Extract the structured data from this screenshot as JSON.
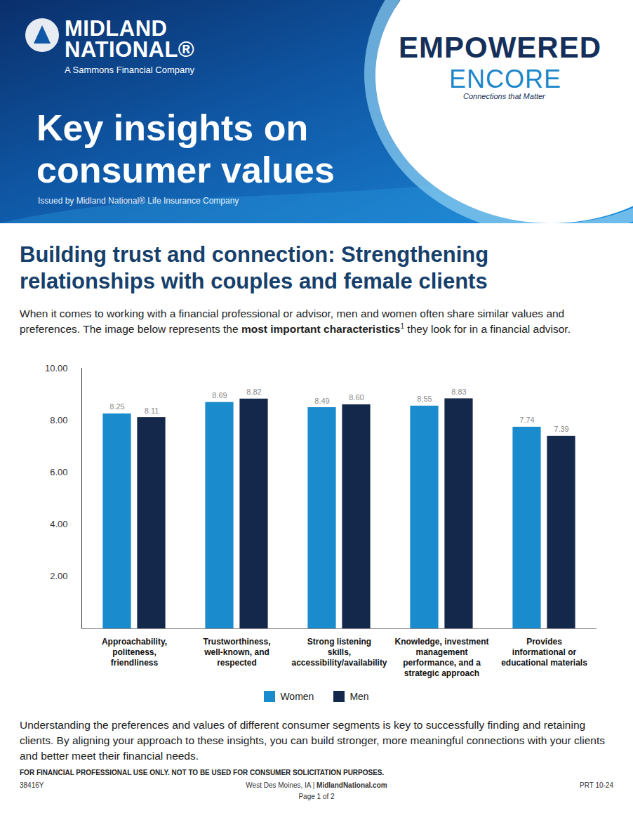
{
  "header": {
    "company": "MIDLAND NATIONAL®",
    "company_tagline": "A Sammons Financial Company",
    "brand_name_1": "EMPOWERED",
    "brand_name_2": "ENCORE",
    "brand_tagline": "Connections that Matter",
    "title": "Key insights on consumer values",
    "issuer": "Issued by Midland National® Life Insurance Company"
  },
  "heading": "Building trust and connection: Strengthening relationships with couples and female clients",
  "intro": {
    "text_before": "When it comes to working with a financial professional or advisor, men and women often share similar values and preferences. The image below represents the ",
    "emphasis": "most important characteristics",
    "footnote": "1",
    "text_after": " they look for in a financial advisor."
  },
  "chart_data": {
    "type": "bar",
    "categories": [
      "Approachability, politeness, friendliness",
      "Trustworthiness, well-known, and respected",
      "Strong listening skills, accessibility/availability",
      "Knowledge, investment management performance, and a strategic approach",
      "Provides informational or educational materials"
    ],
    "series": [
      {
        "name": "Women",
        "color": "#1a8ccd",
        "values": [
          8.25,
          8.69,
          8.49,
          8.55,
          7.74
        ],
        "value_labels": [
          "8.25",
          "8.69",
          "8.49",
          "8.55",
          "7.74"
        ]
      },
      {
        "name": "Men",
        "color": "#14284b",
        "values": [
          8.11,
          8.82,
          8.6,
          8.83,
          7.39
        ],
        "value_labels": [
          "8.11",
          "8.82",
          "8.60",
          "8.83",
          "7.39"
        ]
      }
    ],
    "ylim": [
      0,
      10
    ],
    "yticks": [
      {
        "value": 2,
        "label": "2.00"
      },
      {
        "value": 4,
        "label": "4.00"
      },
      {
        "value": 6,
        "label": "6.00"
      },
      {
        "value": 8,
        "label": "8.00"
      },
      {
        "value": 10,
        "label": "10.00"
      }
    ],
    "grid": false,
    "data_labels": true,
    "legend": "bottom"
  },
  "closing": "Understanding the preferences and values of different consumer segments is key to successfully finding and retaining clients. By aligning your approach to these insights, you can build stronger, more meaningful connections with your clients and better meet their financial needs.",
  "footer": {
    "disclaimer": "FOR FINANCIAL PROFESSIONAL USE ONLY. NOT TO BE USED FOR CONSUMER SOLICITATION PURPOSES.",
    "code": "38416Y",
    "location": "West Des Moines, IA",
    "separator": "|",
    "website": "MidlandNational.com",
    "form": "PRT 10-24",
    "page": "Page 1 of 2"
  }
}
